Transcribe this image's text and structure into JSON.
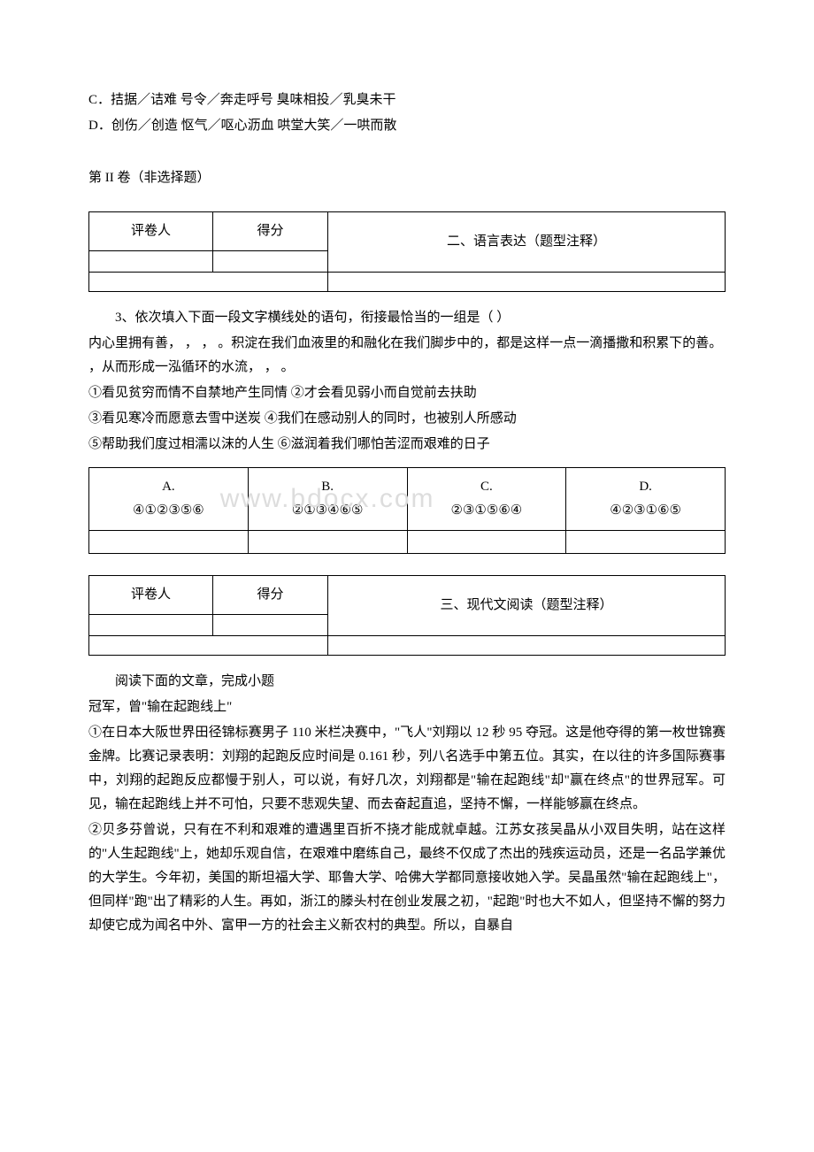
{
  "options_top": {
    "c": "C．拮据／诘难       号令／奔走呼号       臭味相投／乳臭未干",
    "d": "D．创伤／创造       怄气／呕心沥血       哄堂大笑／一哄而散"
  },
  "section2_header": "第 II 卷（非选择题）",
  "score_box": {
    "grader_label": "评卷人",
    "score_label": "得分"
  },
  "section2_title": "二、语言表达（题型注释）",
  "q3": {
    "prompt": "3、依次填入下面一段文字横线处的语句，衔接最恰当的一组是（  ）",
    "line1": "内心里拥有善，          ，          ，          。积淀在我们血液里的和融化在我们脚步中的，都是这样一点一滴播撒和积累下的善。          ，从而形成一泓循环的水流，          ，          。",
    "item1": "①看见贫穷而情不自禁地产生同情   ②才会看见弱小而自觉前去扶助",
    "item2": "③看见寒冷而愿意去雪中送炭   ④我们在感动别人的同时，也被别人所感动",
    "item3": "⑤帮助我们度过相濡以沫的人生      ⑥滋润着我们哪怕苦涩而艰难的日子",
    "choices": {
      "a_label": "A.",
      "a_value": "④①②③⑤⑥",
      "b_label": "B.",
      "b_value": "②①③④⑥⑤",
      "c_label": "C.",
      "c_value": "②③①⑤⑥④",
      "d_label": "D.",
      "d_value": "④②③①⑥⑤"
    }
  },
  "watermark_text": "www.bdocx.com",
  "section3_title": "三、现代文阅读（题型注释）",
  "passage": {
    "intro": "阅读下面的文章，完成小题",
    "title": "冠军，曾\"输在起跑线上\"",
    "p1": "①在日本大阪世界田径锦标赛男子 110 米栏决赛中，\"飞人\"刘翔以 12 秒 95 夺冠。这是他夺得的第一枚世锦赛金牌。比赛记录表明：刘翔的起跑反应时间是 0.161 秒，列八名选手中第五位。其实，在以往的许多国际赛事中，刘翔的起跑反应都慢于别人，可以说，有好几次，刘翔都是\"输在起跑线\"却\"赢在终点\"的世界冠军。可见，输在起跑线上并不可怕，只要不悲观失望、而去奋起直追，坚持不懈，一样能够赢在终点。",
    "p2": "②贝多芬曾说，只有在不利和艰难的遭遇里百折不挠才能成就卓越。江苏女孩吴晶从小双目失明，站在这样的\"人生起跑线\"上，她却乐观自信，在艰难中磨练自己，最终不仅成了杰出的残疾运动员，还是一名品学兼优的大学生。今年初，美国的斯坦福大学、耶鲁大学、哈佛大学都同意接收她入学。吴晶虽然\"输在起跑线上\"，但同样\"跑\"出了精彩的人生。再如，浙江的滕头村在创业发展之初，\"起跑\"时也大不如人，但坚持不懈的努力却使它成为闻名中外、富甲一方的社会主义新农村的典型。所以，自暴自"
  }
}
